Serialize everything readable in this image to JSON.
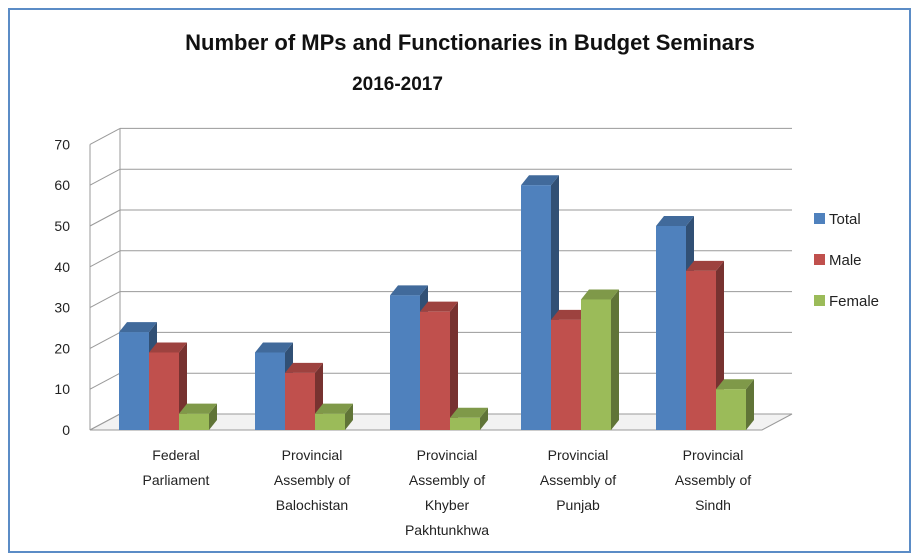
{
  "chart_data": {
    "type": "bar",
    "title": "Number of MPs and Functionaries in Budget Seminars",
    "subtitle": "2016-2017",
    "categories": [
      [
        "Federal",
        "Parliament"
      ],
      [
        "Provincial",
        "Assembly of",
        "Balochistan"
      ],
      [
        "Provincial",
        "Assembly of",
        "Khyber",
        "Pakhtunkhwa"
      ],
      [
        "Provincial",
        "Assembly of",
        "Punjab"
      ],
      [
        "Provincial",
        "Assembly of",
        "Sindh"
      ]
    ],
    "series": [
      {
        "name": "Total",
        "values": [
          24,
          19,
          33,
          60,
          50
        ],
        "color": "#4f81bd"
      },
      {
        "name": "Male",
        "values": [
          19,
          14,
          29,
          27,
          39
        ],
        "color": "#c0504d"
      },
      {
        "name": "Female",
        "values": [
          4,
          4,
          3,
          32,
          10
        ],
        "color": "#9bbb59"
      }
    ],
    "ylim": [
      0,
      70
    ],
    "yticks": [
      0,
      10,
      20,
      30,
      40,
      50,
      60,
      70
    ],
    "grid": true,
    "legend": "right"
  }
}
